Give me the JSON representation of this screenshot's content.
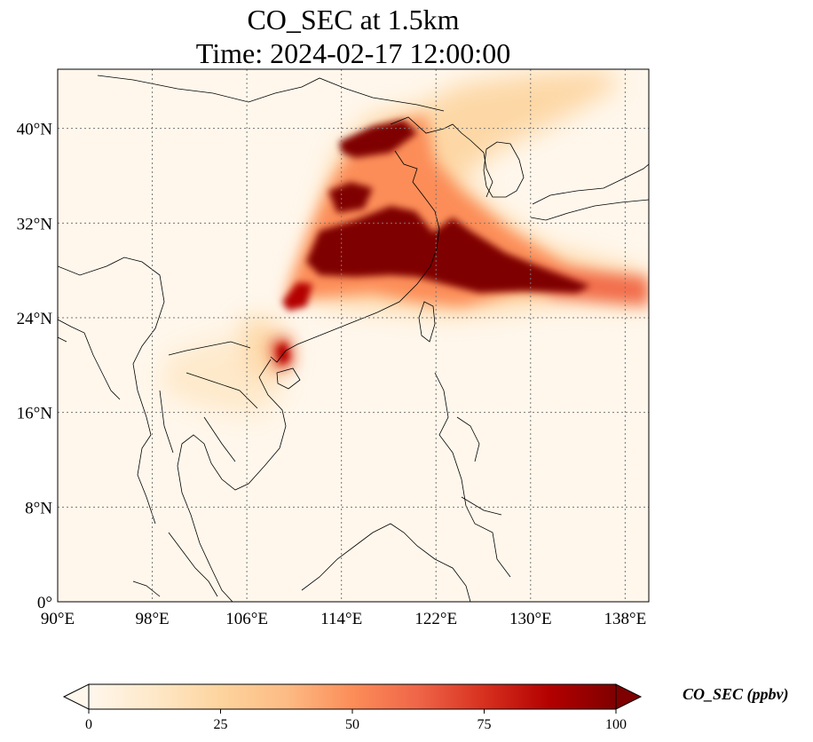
{
  "title": {
    "line1": "CO_SEC at 1.5km",
    "line2": "Time: 2024-02-17 12:00:00"
  },
  "axes": {
    "lon_labels": [
      "90°E",
      "98°E",
      "106°E",
      "114°E",
      "122°E",
      "130°E",
      "138°E"
    ],
    "lat_labels": [
      "0°",
      "8°N",
      "16°N",
      "24°N",
      "32°N",
      "40°N"
    ],
    "lon_values": [
      90,
      98,
      106,
      114,
      122,
      130,
      138
    ],
    "lat_values": [
      0,
      8,
      16,
      24,
      32,
      40
    ],
    "lon_range": [
      90,
      140
    ],
    "lat_range": [
      0,
      45
    ],
    "grid": true,
    "grid_style": "dotted"
  },
  "colorbar": {
    "label": "CO_SEC (ppbv)",
    "ticks": [
      "0",
      "25",
      "50",
      "75",
      "100"
    ],
    "tick_values": [
      0,
      25,
      50,
      75,
      100
    ],
    "range": [
      0,
      100
    ],
    "colormap": "OrRd",
    "colors": [
      "#fff7ec",
      "#fee8c8",
      "#fdd49e",
      "#fdbb84",
      "#fc8d59",
      "#ef6548",
      "#d7301f",
      "#b30000",
      "#7f0000"
    ],
    "extend": "both"
  },
  "chart_data": {
    "type": "heatmap",
    "variable": "CO_SEC",
    "units": "ppbv",
    "level": "1.5km",
    "time": "2024-02-17 12:00:00"
  }
}
